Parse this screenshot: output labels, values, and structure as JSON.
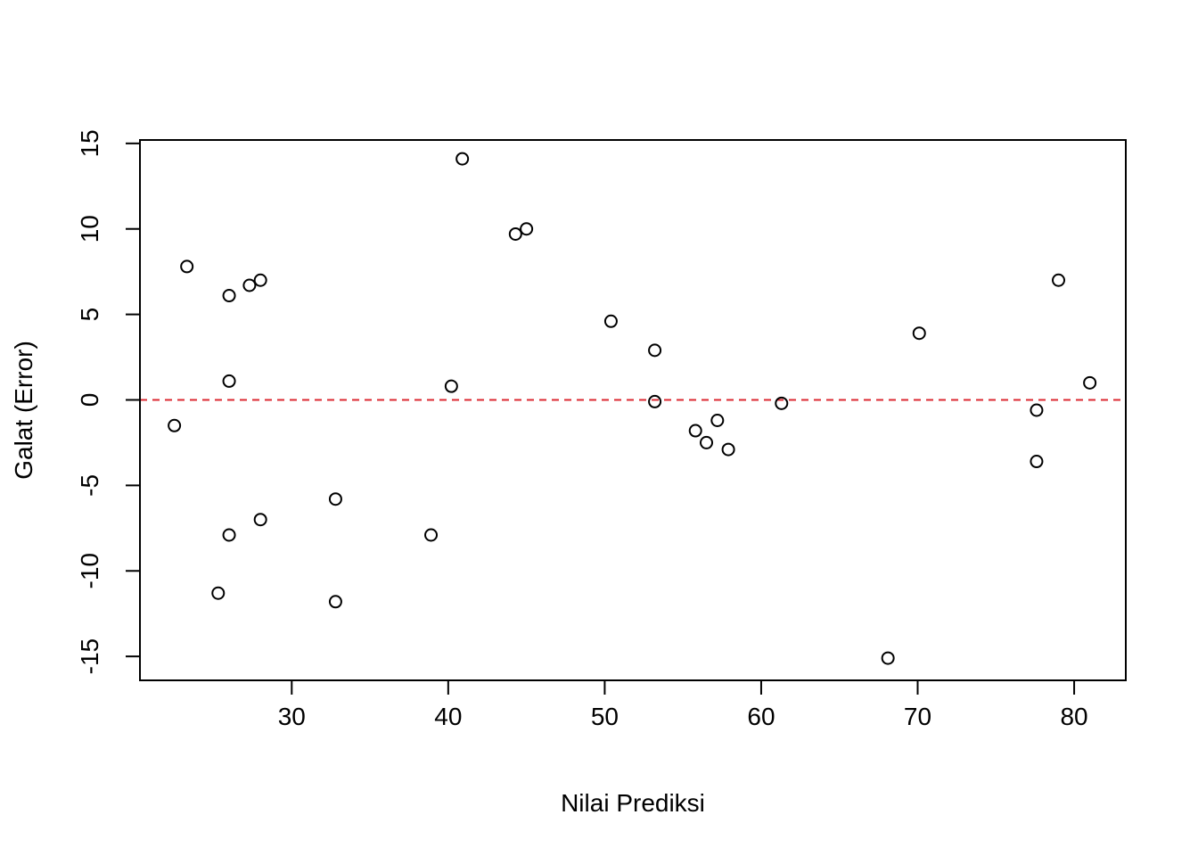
{
  "chart_data": {
    "type": "scatter",
    "title": "",
    "xlabel": "Nilai Prediksi",
    "ylabel": "Galat (Error)",
    "xlim": [
      20.3,
      83.3
    ],
    "ylim": [
      -16.4,
      15.2
    ],
    "x_ticks": [
      30,
      40,
      50,
      60,
      70,
      80
    ],
    "y_ticks": [
      -15,
      -10,
      -5,
      0,
      5,
      10,
      15
    ],
    "x_tick_labels": [
      "30",
      "40",
      "50",
      "60",
      "70",
      "80"
    ],
    "y_tick_labels": [
      "-15",
      "-10",
      "-5",
      "0",
      "5",
      "10",
      "15"
    ],
    "grid": false,
    "reference_line": {
      "y": 0,
      "style": "dashed",
      "color": "#dc2832"
    },
    "marker_color": "#000000",
    "points": [
      {
        "x": 22.5,
        "y": -1.5
      },
      {
        "x": 23.3,
        "y": 7.8
      },
      {
        "x": 25.3,
        "y": -11.3
      },
      {
        "x": 26.0,
        "y": 6.1
      },
      {
        "x": 26.0,
        "y": 1.1
      },
      {
        "x": 26.0,
        "y": -7.9
      },
      {
        "x": 27.3,
        "y": 6.7
      },
      {
        "x": 28.0,
        "y": 7.0
      },
      {
        "x": 28.0,
        "y": -7.0
      },
      {
        "x": 32.8,
        "y": -5.8
      },
      {
        "x": 32.8,
        "y": -11.8
      },
      {
        "x": 38.9,
        "y": -7.9
      },
      {
        "x": 40.2,
        "y": 0.8
      },
      {
        "x": 40.9,
        "y": 14.1
      },
      {
        "x": 44.3,
        "y": 9.7
      },
      {
        "x": 45.0,
        "y": 10.0
      },
      {
        "x": 50.4,
        "y": 4.6
      },
      {
        "x": 53.2,
        "y": 2.9
      },
      {
        "x": 53.2,
        "y": -0.1
      },
      {
        "x": 55.8,
        "y": -1.8
      },
      {
        "x": 56.5,
        "y": -2.5
      },
      {
        "x": 57.2,
        "y": -1.2
      },
      {
        "x": 57.9,
        "y": -2.9
      },
      {
        "x": 61.3,
        "y": -0.2
      },
      {
        "x": 68.1,
        "y": -15.1
      },
      {
        "x": 70.1,
        "y": 3.9
      },
      {
        "x": 77.6,
        "y": -0.6
      },
      {
        "x": 77.6,
        "y": -3.6
      },
      {
        "x": 79.0,
        "y": 7.0
      },
      {
        "x": 81.0,
        "y": 1.0
      }
    ]
  }
}
